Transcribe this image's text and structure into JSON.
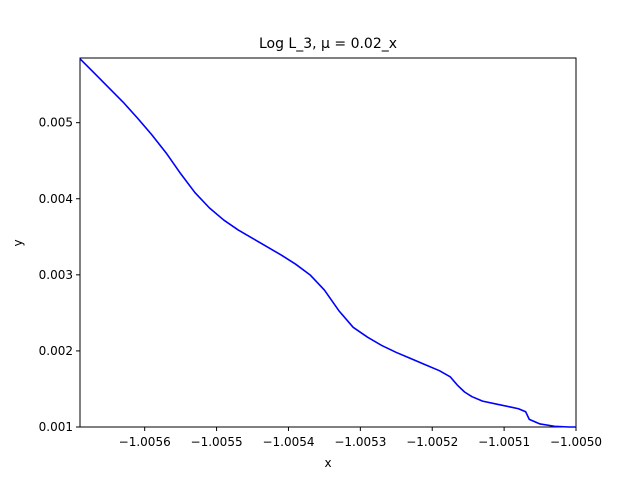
{
  "chart_data": {
    "type": "line",
    "title": "Log L_3, μ = 0.02_x",
    "xlabel": "x",
    "ylabel": "y",
    "xlim": [
      -1.00569,
      -1.005
    ],
    "ylim": [
      0.001,
      0.00585
    ],
    "xticks": [
      -1.0056,
      -1.0055,
      -1.0054,
      -1.0053,
      -1.0052,
      -1.0051,
      -1.005
    ],
    "xtick_labels": [
      "−1.0056",
      "−1.0055",
      "−1.0054",
      "−1.0053",
      "−1.0052",
      "−1.0051",
      "−1.0050"
    ],
    "yticks": [
      0.001,
      0.002,
      0.003,
      0.004,
      0.005
    ],
    "ytick_labels": [
      "0.001",
      "0.002",
      "0.003",
      "0.004",
      "0.005"
    ],
    "grid": false,
    "series": [
      {
        "color": "#0000ff",
        "x": [
          -1.00569,
          -1.00567,
          -1.00565,
          -1.00563,
          -1.00561,
          -1.00559,
          -1.00557,
          -1.00555,
          -1.00553,
          -1.00551,
          -1.00549,
          -1.00547,
          -1.00545,
          -1.00543,
          -1.00541,
          -1.00539,
          -1.00537,
          -1.00535,
          -1.00533,
          -1.00531,
          -1.00529,
          -1.00527,
          -1.00525,
          -1.00523,
          -1.00521,
          -1.00519,
          -1.005175,
          -1.005165,
          -1.005155,
          -1.005145,
          -1.00513,
          -1.00511,
          -1.00509,
          -1.00508,
          -1.005075,
          -1.00507,
          -1.005065,
          -1.00505,
          -1.00503,
          -1.00501,
          -1.005
        ],
        "y": [
          0.00584,
          0.00565,
          0.00546,
          0.00527,
          0.00506,
          0.00484,
          0.0046,
          0.00433,
          0.00408,
          0.00388,
          0.00372,
          0.00359,
          0.00348,
          0.00337,
          0.00326,
          0.00314,
          0.003,
          0.0028,
          0.00253,
          0.00231,
          0.00218,
          0.00207,
          0.00198,
          0.0019,
          0.00182,
          0.00174,
          0.00166,
          0.00155,
          0.00146,
          0.0014,
          0.00134,
          0.0013,
          0.00126,
          0.00124,
          0.00122,
          0.0012,
          0.0011,
          0.00104,
          0.00101,
          0.001,
          0.001
        ]
      }
    ]
  }
}
